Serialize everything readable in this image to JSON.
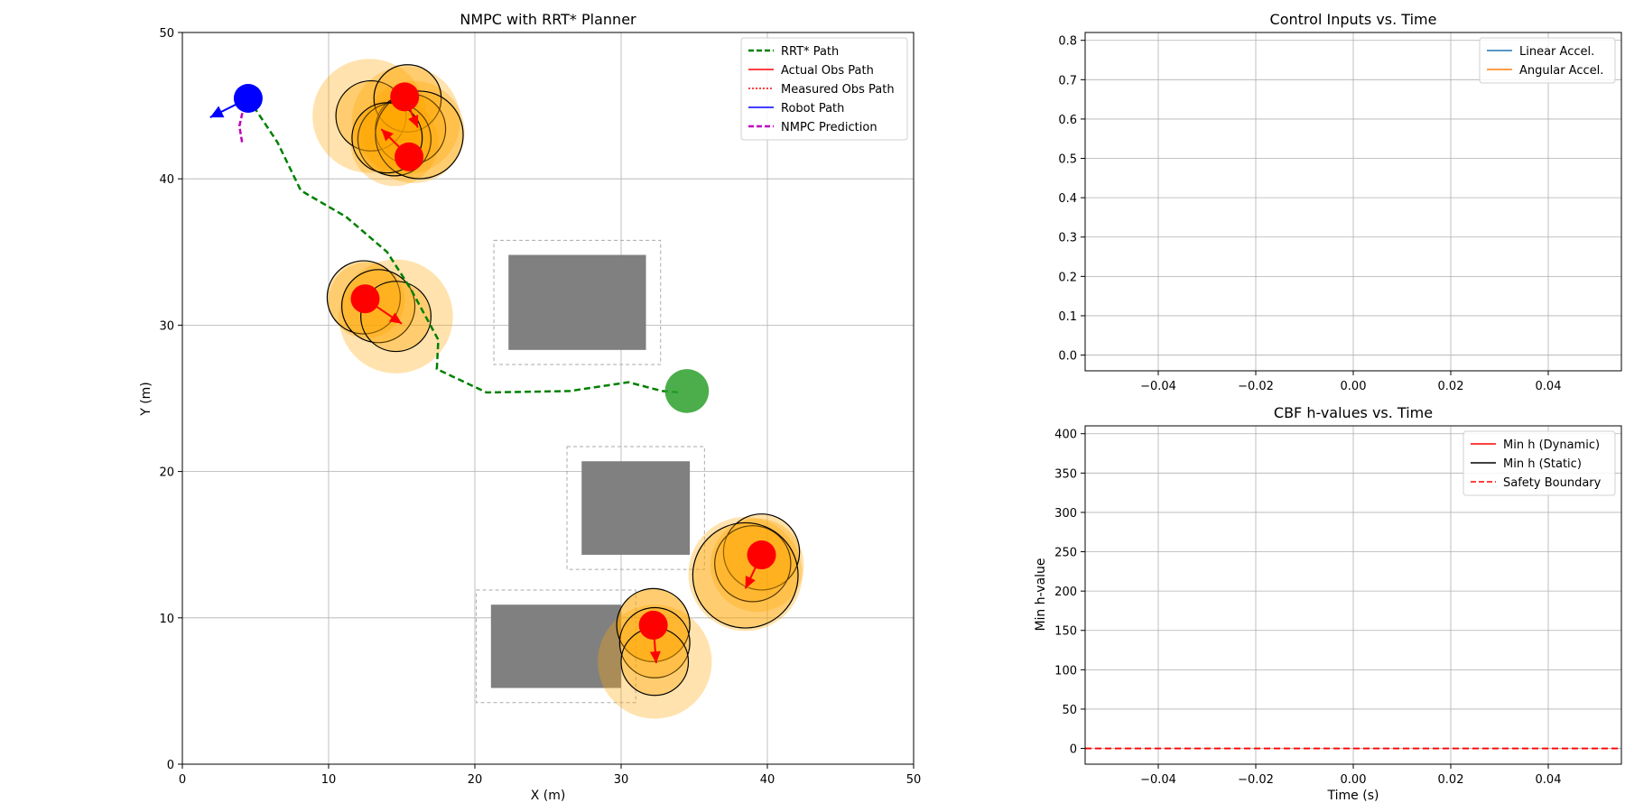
{
  "chart_data": [
    {
      "type": "scatter",
      "title": "NMPC with RRT* Planner",
      "xlabel": "X (m)",
      "ylabel": "Y (m)",
      "xlim": [
        0,
        50
      ],
      "ylim": [
        0,
        50
      ],
      "xticks": [
        0,
        10,
        20,
        30,
        40,
        50
      ],
      "yticks": [
        0,
        10,
        20,
        30,
        40,
        50
      ],
      "grid": true,
      "legend_position": "upper right",
      "legend": [
        {
          "label": "RRT* Path",
          "color": "#008000",
          "style": "dashed"
        },
        {
          "label": "Actual Obs Path",
          "color": "#ff0000",
          "style": "solid"
        },
        {
          "label": "Measured Obs Path",
          "color": "#ff0000",
          "style": "dotted"
        },
        {
          "label": "Robot Path",
          "color": "#0000ff",
          "style": "solid"
        },
        {
          "label": "NMPC Prediction",
          "color": "#bf00bf",
          "style": "dashed"
        }
      ],
      "rrt_path": [
        [
          4.5,
          45.5
        ],
        [
          6.5,
          42.5
        ],
        [
          8.1,
          39.2
        ],
        [
          11.2,
          37.4
        ],
        [
          14,
          35
        ],
        [
          15.6,
          32.5
        ],
        [
          17.5,
          29
        ],
        [
          17.4,
          27
        ],
        [
          20.8,
          25.4
        ],
        [
          26.5,
          25.5
        ],
        [
          30.5,
          26.1
        ],
        [
          32.8,
          25.5
        ],
        [
          34.1,
          25.4
        ]
      ],
      "nmpc_prediction": [
        [
          4.1,
          44.5
        ],
        [
          3.9,
          43.6
        ],
        [
          4.1,
          42.4
        ]
      ],
      "robot": {
        "x": 4.5,
        "y": 45.5,
        "radius": 1.0,
        "color": "#0000ff",
        "heading": [
          1.9,
          44.2
        ]
      },
      "goal": {
        "x": 34.5,
        "y": 25.5,
        "radius": 1.5,
        "color": "#2ca02c"
      },
      "static_obstacles": [
        {
          "x0": 22.3,
          "y0": 28.3,
          "x1": 31.7,
          "y1": 34.8,
          "margin": 1.0
        },
        {
          "x0": 27.3,
          "y0": 14.3,
          "x1": 34.7,
          "y1": 20.7,
          "margin": 1.0
        },
        {
          "x0": 21.1,
          "y0": 5.2,
          "x1": 30.0,
          "y1": 10.9,
          "margin": 1.0
        }
      ],
      "dynamic_obstacles": [
        {
          "x": 15.2,
          "y": 45.6,
          "arrow_to": [
            16.1,
            43.5
          ],
          "safety": [
            {
              "x": 12.8,
              "y": 44.3,
              "r": 3.9
            },
            {
              "x": 15.3,
              "y": 44.0,
              "r": 3.7
            },
            {
              "x": 15.8,
              "y": 43.2,
              "r": 3.5
            }
          ],
          "rings": [
            {
              "x": 12.9,
              "y": 44.3,
              "r": 2.4
            },
            {
              "x": 15.4,
              "y": 45.5,
              "r": 2.3
            },
            {
              "x": 15.6,
              "y": 43.4,
              "r": 2.4
            },
            {
              "x": 14.5,
              "y": 42.7,
              "r": 2.5
            },
            {
              "x": 16.2,
              "y": 43.0,
              "r": 3.0
            }
          ]
        },
        {
          "x": 15.5,
          "y": 41.5,
          "arrow_to": [
            13.6,
            43.4
          ],
          "safety": [
            {
              "x": 14.5,
              "y": 42.5,
              "r": 3.0
            }
          ],
          "rings": [
            {
              "x": 14.0,
              "y": 42.8,
              "r": 2.4
            }
          ]
        },
        {
          "x": 12.5,
          "y": 31.8,
          "arrow_to": [
            15.0,
            30.1
          ],
          "safety": [
            {
              "x": 12.6,
              "y": 31.7,
              "r": 2.6
            },
            {
              "x": 14.6,
              "y": 30.6,
              "r": 3.9
            }
          ],
          "rings": [
            {
              "x": 12.4,
              "y": 31.9,
              "r": 2.5
            },
            {
              "x": 13.4,
              "y": 31.3,
              "r": 2.5
            },
            {
              "x": 14.6,
              "y": 30.6,
              "r": 2.4
            }
          ]
        },
        {
          "x": 39.6,
          "y": 14.3,
          "arrow_to": [
            38.5,
            12.0
          ],
          "safety": [
            {
              "x": 39.3,
              "y": 13.6,
              "r": 3.2
            },
            {
              "x": 38.5,
              "y": 13.0,
              "r": 3.9
            }
          ],
          "rings": [
            {
              "x": 39.6,
              "y": 14.5,
              "r": 2.6
            },
            {
              "x": 39.0,
              "y": 13.7,
              "r": 2.6
            },
            {
              "x": 38.5,
              "y": 12.9,
              "r": 3.6
            }
          ]
        },
        {
          "x": 32.2,
          "y": 9.5,
          "arrow_to": [
            32.4,
            6.9
          ],
          "safety": [
            {
              "x": 32.2,
              "y": 9.5,
              "r": 2.5
            },
            {
              "x": 32.3,
              "y": 7.0,
              "r": 3.9
            }
          ],
          "rings": [
            {
              "x": 32.2,
              "y": 9.5,
              "r": 2.5
            },
            {
              "x": 32.3,
              "y": 8.3,
              "r": 2.4
            },
            {
              "x": 32.3,
              "y": 7.0,
              "r": 2.3
            }
          ]
        }
      ]
    },
    {
      "type": "line",
      "title": "Control Inputs vs. Time",
      "xlabel": "",
      "ylabel": "",
      "xlim": [
        -0.055,
        0.055
      ],
      "ylim": [
        -0.04,
        0.82
      ],
      "xticks": [
        -0.04,
        -0.02,
        0.0,
        0.02,
        0.04
      ],
      "xtick_labels": [
        "−0.04",
        "−0.02",
        "0.00",
        "0.02",
        "0.04"
      ],
      "yticks": [
        0.0,
        0.1,
        0.2,
        0.3,
        0.4,
        0.5,
        0.6,
        0.7,
        0.8
      ],
      "ytick_labels": [
        "0.0",
        "0.1",
        "0.2",
        "0.3",
        "0.4",
        "0.5",
        "0.6",
        "0.7",
        "0.8"
      ],
      "grid": true,
      "legend_position": "upper right",
      "series": [
        {
          "name": "Linear Accel.",
          "color": "#1f77b4",
          "style": "solid",
          "x": [],
          "y": []
        },
        {
          "name": "Angular Accel.",
          "color": "#ff7f0e",
          "style": "solid",
          "x": [],
          "y": []
        }
      ]
    },
    {
      "type": "line",
      "title": "CBF h-values vs. Time",
      "xlabel": "Time (s)",
      "ylabel": "Min h-value",
      "xlim": [
        -0.055,
        0.055
      ],
      "ylim": [
        -20,
        410
      ],
      "xticks": [
        -0.04,
        -0.02,
        0.0,
        0.02,
        0.04
      ],
      "xtick_labels": [
        "−0.04",
        "−0.02",
        "0.00",
        "0.02",
        "0.04"
      ],
      "yticks": [
        0,
        50,
        100,
        150,
        200,
        250,
        300,
        350,
        400
      ],
      "ytick_labels": [
        "0",
        "50",
        "100",
        "150",
        "200",
        "250",
        "300",
        "350",
        "400"
      ],
      "grid": true,
      "legend_position": "upper right",
      "series": [
        {
          "name": "Min h (Dynamic)",
          "color": "#ff0000",
          "style": "solid",
          "x": [],
          "y": []
        },
        {
          "name": "Min h (Static)",
          "color": "#000000",
          "style": "solid",
          "x": [],
          "y": []
        },
        {
          "name": "Safety Boundary",
          "color": "#ff0000",
          "style": "dashed",
          "hline": 0
        }
      ]
    }
  ]
}
